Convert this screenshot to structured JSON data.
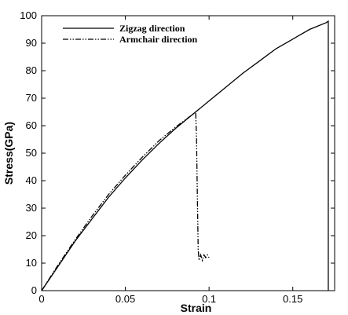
{
  "chart_data": {
    "type": "line",
    "title": "",
    "xlabel": "Strain",
    "ylabel": "Stress(GPa)",
    "xlim": [
      0,
      0.175
    ],
    "ylim": [
      0,
      100
    ],
    "xticks": [
      0,
      0.05,
      0.1,
      0.15
    ],
    "xtick_labels": [
      "0",
      "0.05",
      "0.1",
      "0.15"
    ],
    "yticks": [
      0,
      10,
      20,
      30,
      40,
      50,
      60,
      70,
      80,
      90,
      100
    ],
    "ytick_labels": [
      "0",
      "10",
      "20",
      "30",
      "40",
      "50",
      "60",
      "70",
      "80",
      "90",
      "100"
    ],
    "legend_position": "top-left",
    "grid": false,
    "series": [
      {
        "name": "Zigzag direction",
        "style": "solid",
        "x": [
          0,
          0.01,
          0.02,
          0.03,
          0.04,
          0.05,
          0.06,
          0.07,
          0.08,
          0.09,
          0.1,
          0.11,
          0.12,
          0.13,
          0.14,
          0.15,
          0.16,
          0.17,
          0.1712,
          0.1712
        ],
        "y": [
          0,
          9,
          18,
          26,
          34,
          41,
          47.5,
          53.5,
          59,
          64,
          69,
          74,
          79,
          83.5,
          88,
          91.5,
          95,
          97.5,
          98,
          0
        ]
      },
      {
        "name": "Armchair direction",
        "style": "dashdotdot",
        "x": [
          0,
          0.01,
          0.02,
          0.03,
          0.04,
          0.05,
          0.06,
          0.07,
          0.08,
          0.09,
          0.092,
          0.0925,
          0.093,
          0.0935,
          0.094,
          0.095,
          0.096,
          0.097,
          0.098,
          0.099,
          0.1
        ],
        "y": [
          0,
          9.5,
          18.5,
          27,
          35,
          42,
          48.5,
          54.5,
          59.5,
          64,
          65,
          55,
          35,
          15,
          11,
          13,
          11,
          13,
          12,
          13,
          12
        ]
      }
    ]
  }
}
